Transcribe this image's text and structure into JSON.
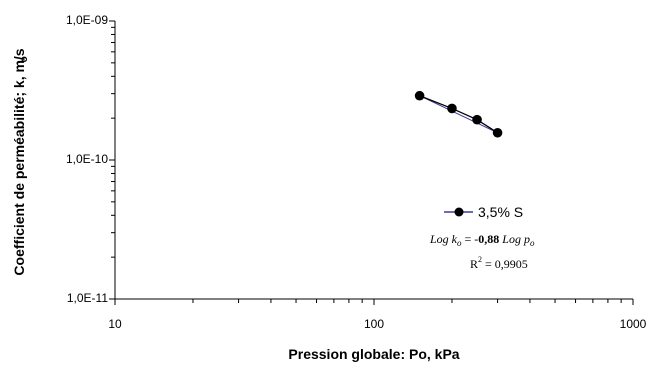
{
  "chart_data": {
    "type": "line",
    "x_scale": "log",
    "y_scale": "log",
    "xlim": [
      10,
      1000
    ],
    "ylim": [
      1e-11,
      1e-09
    ],
    "xlabel": "Pression globale: Po,  kPa",
    "ylabel": "Coefficient de perméabilité; k, m/s",
    "ylabel_sub": "o",
    "x_ticks": [
      {
        "value": 10,
        "label": "10"
      },
      {
        "value": 100,
        "label": "100"
      },
      {
        "value": 1000,
        "label": "1000"
      }
    ],
    "y_ticks": [
      {
        "value": 1e-11,
        "label": "1,0E-11"
      },
      {
        "value": 1e-10,
        "label": "1,0E-10"
      },
      {
        "value": 1e-09,
        "label": "1,0E-09"
      }
    ],
    "grid": false,
    "legend_position": "bottom-right",
    "series": [
      {
        "name": "3,5% S",
        "color": "#000000",
        "x": [
          150,
          200,
          250,
          300
        ],
        "y": [
          2.9e-10,
          2.35e-10,
          1.95e-10,
          1.57e-10
        ]
      }
    ],
    "annotations": {
      "equation": {
        "log": "Log k",
        "k_sub": "o",
        "equals": " = -",
        "coef": "0,88",
        "log2": " Log p",
        "p_sub": "o"
      },
      "r2": {
        "r": "R",
        "sup": "2",
        "value": " = 0,9905"
      }
    },
    "colors": {
      "fit_line": "#3a3aa0",
      "marker": "#000000"
    }
  }
}
